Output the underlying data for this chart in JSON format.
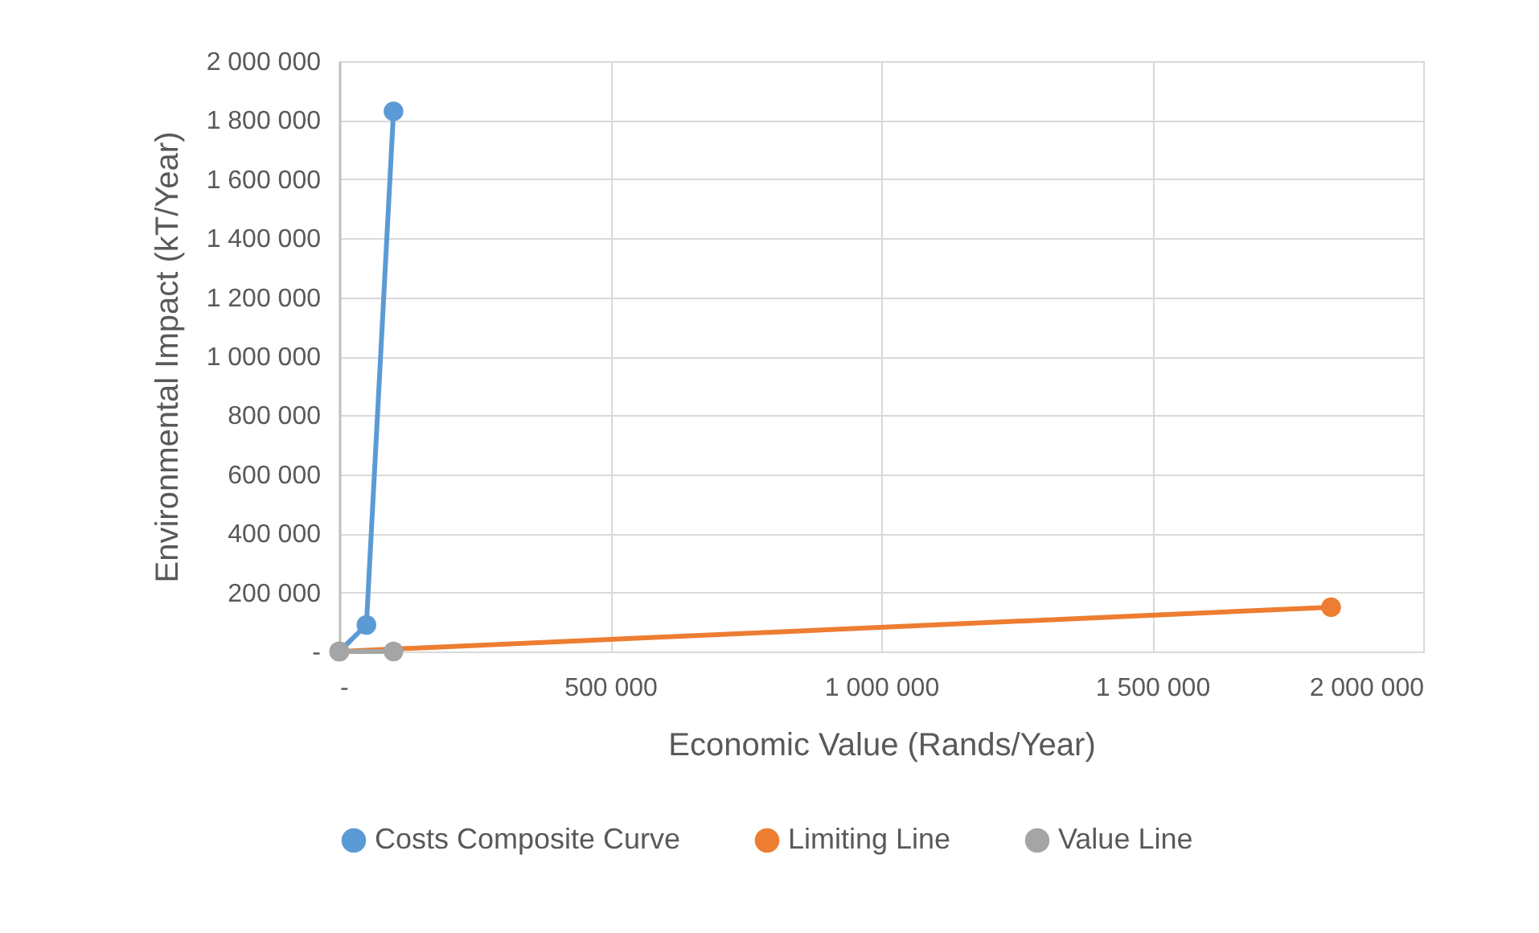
{
  "chart_data": {
    "type": "line",
    "xlabel": "Economic Value (Rands/Year)",
    "ylabel": "Environmental Impact (kT/Year)",
    "series": [
      {
        "name": "Costs Composite Curve",
        "color": "#5b9bd5",
        "x": [
          0,
          50000,
          100000
        ],
        "values": [
          0,
          90000,
          1830000
        ]
      },
      {
        "name": "Limiting Line",
        "color": "#ed7d31",
        "x": [
          0,
          1830000
        ],
        "values": [
          0,
          150000
        ]
      },
      {
        "name": "Value Line",
        "color": "#a5a5a5",
        "x": [
          0,
          100000
        ],
        "values": [
          0,
          0
        ]
      }
    ],
    "xlim": [
      0,
      2000000
    ],
    "ylim": [
      0,
      2000000
    ],
    "xticks": [
      {
        "value": 0,
        "label": "-"
      },
      {
        "value": 500000,
        "label": "500 000"
      },
      {
        "value": 1000000,
        "label": "1 000 000"
      },
      {
        "value": 1500000,
        "label": "1 500 000"
      },
      {
        "value": 2000000,
        "label": "2 000 000"
      }
    ],
    "yticks": [
      {
        "value": 0,
        "label": "-"
      },
      {
        "value": 200000,
        "label": "200 000"
      },
      {
        "value": 400000,
        "label": "400 000"
      },
      {
        "value": 600000,
        "label": "600 000"
      },
      {
        "value": 800000,
        "label": "800 000"
      },
      {
        "value": 1000000,
        "label": "1 000 000"
      },
      {
        "value": 1200000,
        "label": "1 200 000"
      },
      {
        "value": 1400000,
        "label": "1 400 000"
      },
      {
        "value": 1600000,
        "label": "1 600 000"
      },
      {
        "value": 1800000,
        "label": "1 800 000"
      },
      {
        "value": 2000000,
        "label": "2 000 000"
      }
    ],
    "grid": true,
    "legend": "bottom",
    "marker": "circle",
    "line_style": "solid"
  }
}
